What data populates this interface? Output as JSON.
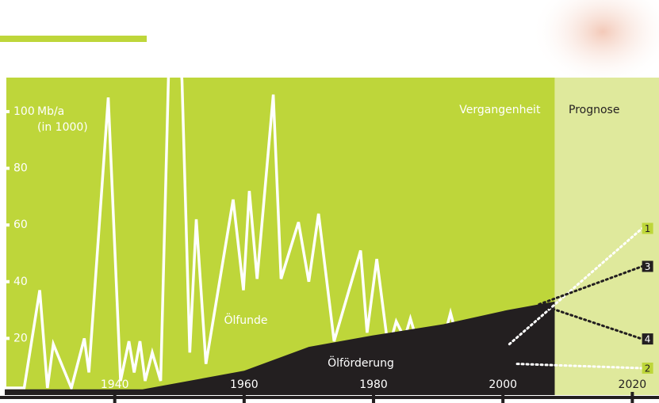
{
  "chart_data": {
    "type": "area-line",
    "y_label": [
      "Mb/a",
      "(in 1000)"
    ],
    "period_labels": [
      "Vergangenheit",
      "Prognose"
    ],
    "xlim": [
      1923,
      2024
    ],
    "xticks": [
      1940,
      1960,
      1980,
      2000,
      2020
    ],
    "ylim": [
      0,
      112
    ],
    "yticks": [
      20,
      40,
      60,
      80,
      100
    ],
    "series": [
      {
        "name": "Ölfunde",
        "color": "#ffffff",
        "style": "line",
        "x": [
          1923,
          1926,
          1928.4,
          1929.6,
          1930.5,
          1933.3,
          1935.3,
          1936,
          1939,
          1940.9,
          1942.2,
          1943,
          1943.9,
          1944.7,
          1945.8,
          1947.1,
          1948.3,
          1949.4,
          1950.4,
          1951.6,
          1952.6,
          1954.1,
          1958.3,
          1959.9,
          1960.8,
          1962,
          1964.5,
          1965.7,
          1968.4,
          1970,
          1971.5,
          1973.9,
          1978,
          1979,
          1980.5,
          1982.3,
          1983.5,
          1984.8,
          1985.7,
          1986.6,
          1990.3,
          1991.9,
          1994,
          1996.1,
          1997.3,
          1999.2,
          2000.7,
          2002.2,
          2003.4,
          2004.6,
          2005.6,
          2007.8
        ],
        "values": [
          2.5,
          2.5,
          37,
          2.5,
          18,
          2.5,
          20,
          8,
          105,
          5,
          19,
          8,
          19,
          5,
          15,
          5,
          112,
          137,
          111,
          15,
          62,
          11,
          69,
          37,
          72,
          41,
          106,
          41,
          61,
          40,
          64,
          19,
          51,
          22,
          48,
          16,
          26,
          20,
          27,
          20,
          15,
          29,
          11,
          16,
          12,
          14,
          26,
          11,
          16,
          11,
          16,
          8
        ]
      },
      {
        "name": "Ölförderung",
        "color": "#231f20",
        "style": "area",
        "x": [
          1923,
          1944.3,
          1960,
          1970,
          1979.8,
          1990.8,
          2000.7,
          2005.6,
          2008
        ],
        "values": [
          2,
          2,
          8.6,
          17,
          21,
          25,
          30,
          32,
          33
        ]
      }
    ],
    "forecasts": [
      {
        "name": "1",
        "color": "#ffffff",
        "box": "#bed63a",
        "text": "#231f20",
        "x": [
          2001,
          2021.5
        ],
        "values": [
          18,
          58.8
        ]
      },
      {
        "name": "3",
        "color": "#231f20",
        "box": "#231f20",
        "text": "#ffffff",
        "x": [
          2005.6,
          2021.5
        ],
        "values": [
          32,
          45.4
        ]
      },
      {
        "name": "4",
        "color": "#231f20",
        "box": "#231f20",
        "text": "#ffffff",
        "x": [
          2005.6,
          2021.5
        ],
        "values": [
          32,
          19.8
        ]
      },
      {
        "name": "2",
        "color": "#ffffff",
        "box": "#bed63a",
        "text": "#231f20",
        "x": [
          2002.2,
          2021.5
        ],
        "values": [
          11,
          9.5
        ]
      }
    ],
    "past_color": "#bed63a",
    "forecast_color": "#dfe99c"
  }
}
